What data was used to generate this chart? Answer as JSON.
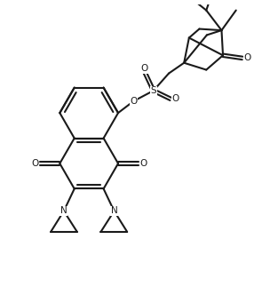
{
  "bg": "#ffffff",
  "lc": "#1a1a1a",
  "lw": 1.5,
  "figsize": [
    3.13,
    3.23
  ],
  "dpi": 100,
  "xlim": [
    0,
    10
  ],
  "ylim": [
    0,
    10
  ]
}
